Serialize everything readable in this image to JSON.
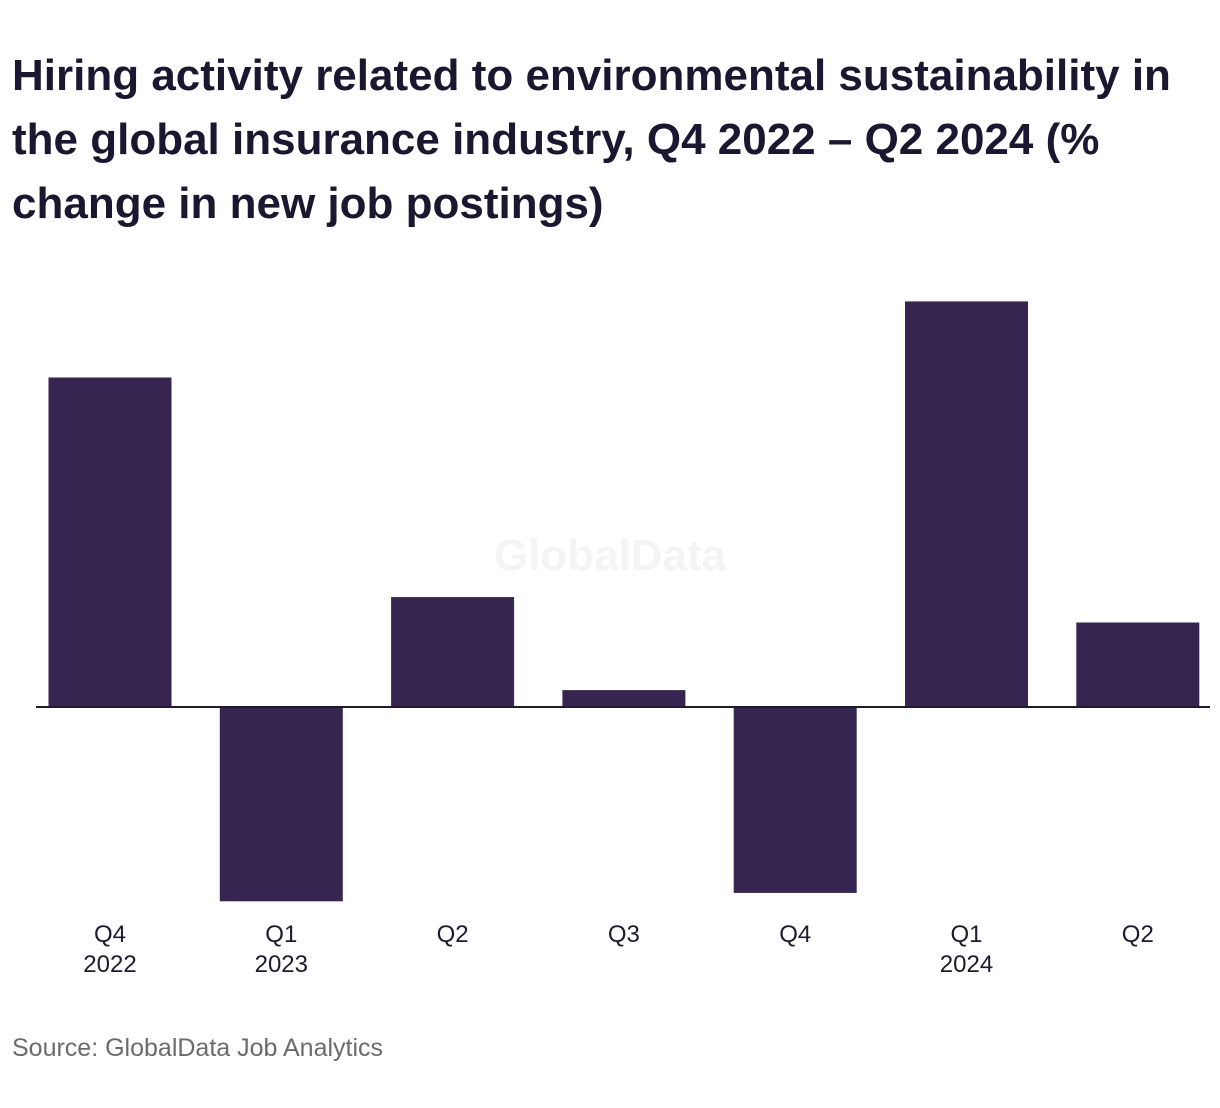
{
  "chart_data": {
    "type": "bar",
    "title": "Hiring activity related to environmental sustainability in the global insurance industry, Q4 2022 – Q2 2024 (% change in new job postings)",
    "watermark": "GlobalData",
    "categories": [
      [
        "Q4",
        "2022"
      ],
      [
        "Q1",
        "2023"
      ],
      [
        "Q2",
        ""
      ],
      [
        "Q3",
        ""
      ],
      [
        "Q4",
        ""
      ],
      [
        "Q1",
        "2024"
      ],
      [
        "Q2",
        ""
      ]
    ],
    "values": [
      39,
      -23,
      13,
      2,
      -22,
      48,
      10
    ],
    "ylim": [
      -25,
      50
    ],
    "grid": false,
    "bar_color": "#362451",
    "baseline_color": "#1e1b2e",
    "source": "Source: GlobalData Job Analytics"
  }
}
